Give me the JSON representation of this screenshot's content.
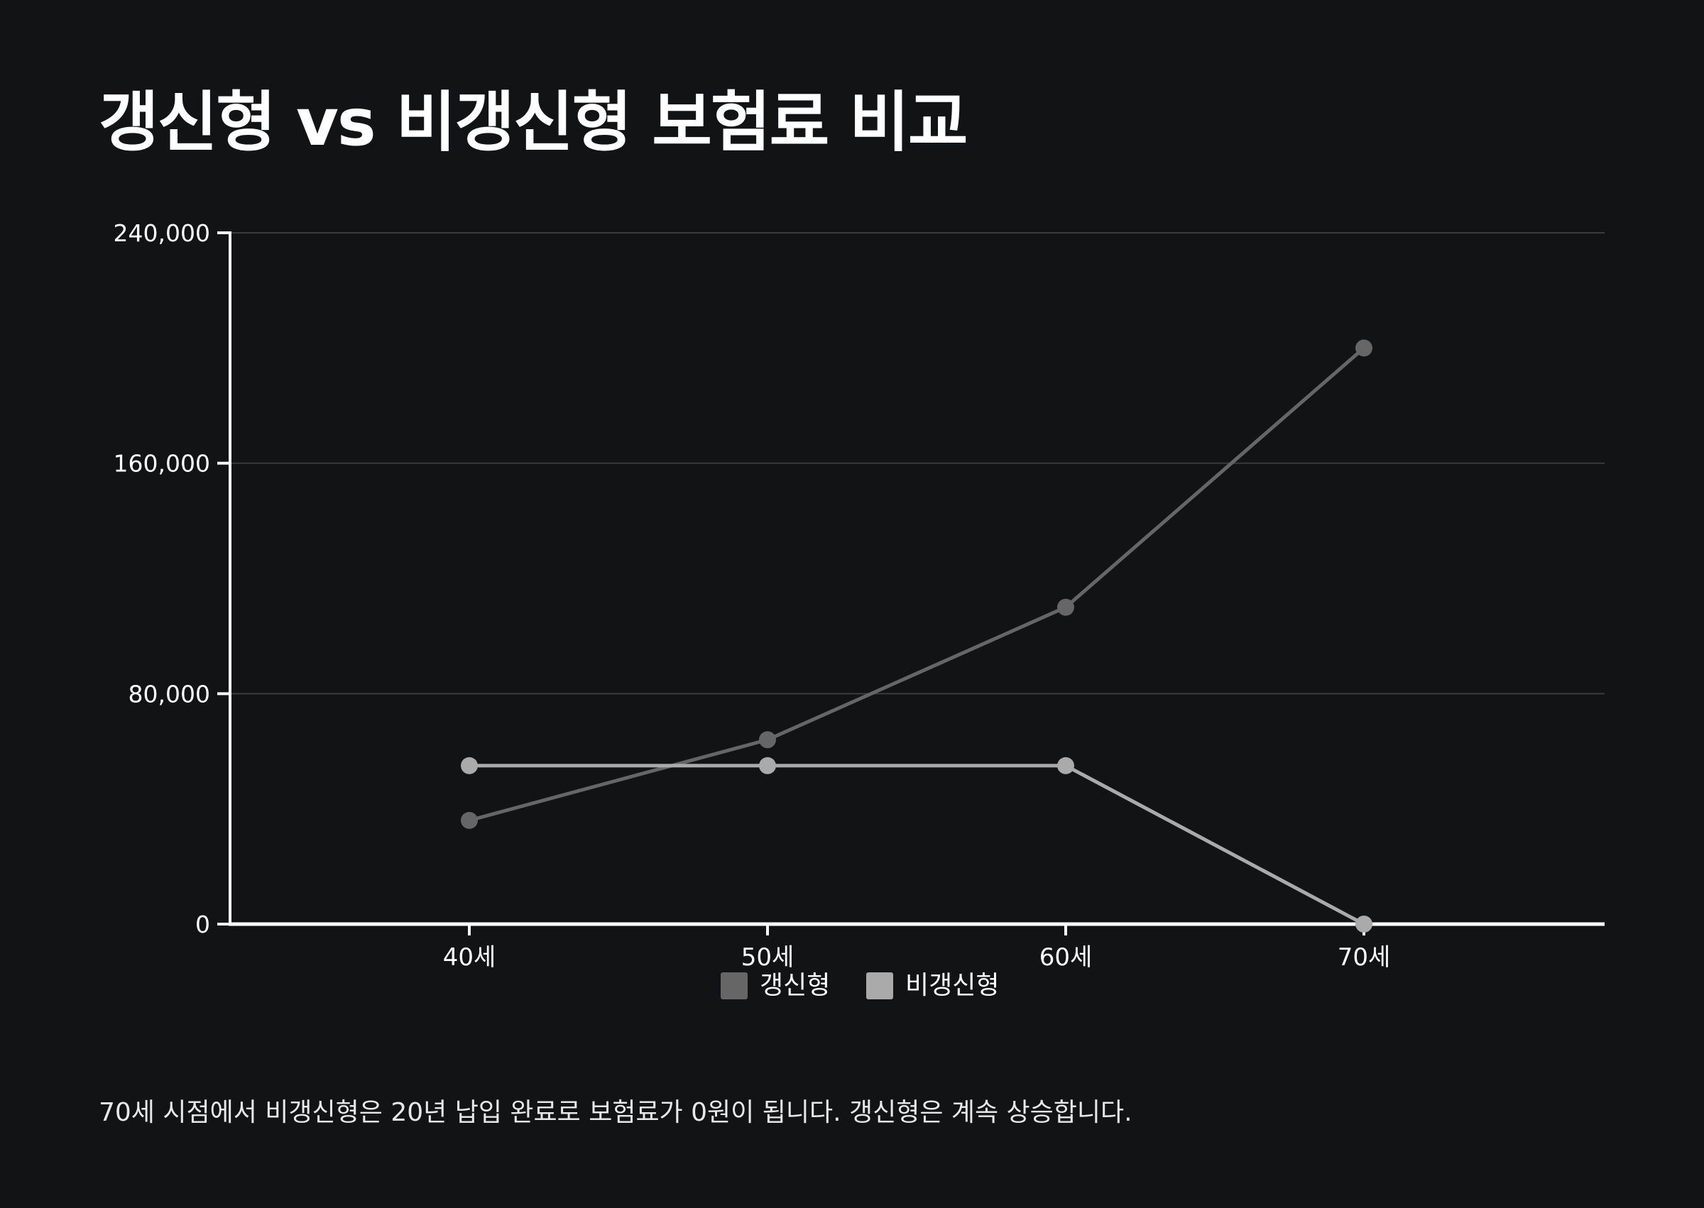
{
  "title": "갱신형 vs 비갱신형 보험료 비교",
  "caption": "70세 시점에서 비갱신형은 20년 납입 완료로 보험료가 0원이 됩니다. 갱신형은 계속 상승합니다.",
  "colors": {
    "background": "#121315",
    "axis": "#ffffff",
    "grid": "#3a3b3e",
    "text": "#ffffff",
    "renewable": "#666666",
    "non_renewable": "#aaaaaa"
  },
  "chart_data": {
    "type": "line",
    "categories": [
      "40세",
      "50세",
      "60세",
      "70세"
    ],
    "series": [
      {
        "name": "갱신형",
        "values": [
          36000,
          64000,
          110000,
          200000
        ],
        "color": "#666666"
      },
      {
        "name": "비갱신형",
        "values": [
          55000,
          55000,
          55000,
          0
        ],
        "color": "#aaaaaa"
      }
    ],
    "yticks": [
      0,
      80000,
      160000,
      240000
    ],
    "ytick_labels": [
      "0",
      "80,000",
      "160,000",
      "240,000"
    ],
    "ylim": [
      0,
      240000
    ],
    "grid": true,
    "legend": "bottom-center"
  }
}
